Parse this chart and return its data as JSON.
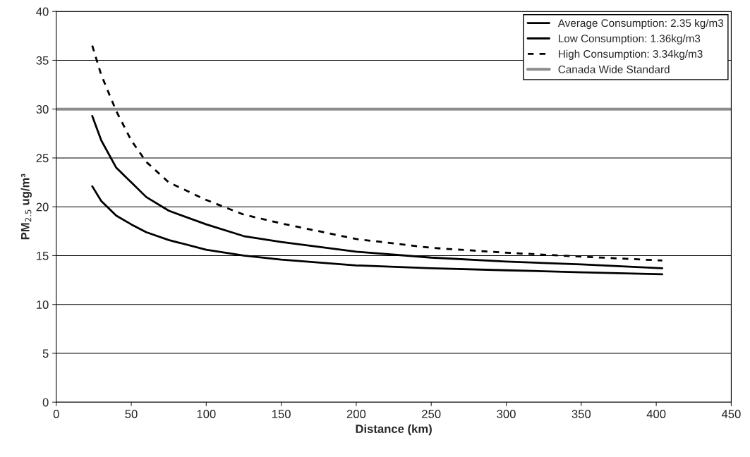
{
  "chart_data": {
    "type": "line",
    "xlabel": "Distance (km)",
    "ylabel": "PM$_{2.5}$ ug/m³",
    "x": [
      24,
      30,
      40,
      50,
      60,
      75,
      100,
      125,
      150,
      200,
      250,
      300,
      350,
      404
    ],
    "series": [
      {
        "name": "Average Consumption: 2.35 kg/m3",
        "color": "#000000",
        "line_style": "solid",
        "values": [
          29.3,
          26.8,
          24.0,
          22.5,
          21.0,
          19.6,
          18.2,
          17.0,
          16.4,
          15.4,
          14.8,
          14.4,
          14.1,
          13.7
        ]
      },
      {
        "name": "Low Consumption: 1.36kg/m3",
        "color": "#000000",
        "line_style": "solid",
        "values": [
          22.1,
          20.6,
          19.1,
          18.2,
          17.4,
          16.6,
          15.6,
          15.0,
          14.6,
          14.0,
          13.7,
          13.5,
          13.3,
          13.1
        ]
      },
      {
        "name": "High Consumption: 3.34kg/m3",
        "color": "#000000",
        "line_style": "dashed",
        "values": [
          36.5,
          33.5,
          29.8,
          26.8,
          24.6,
          22.5,
          20.7,
          19.2,
          18.3,
          16.7,
          15.8,
          15.3,
          14.9,
          14.5
        ]
      }
    ],
    "ref_lines": [
      {
        "axis": "y",
        "value": 30,
        "label": "Canada Wide Standard",
        "color": "#8c8c8c",
        "line_style": "solid"
      }
    ],
    "xlim": [
      0,
      450
    ],
    "xticks": [
      0,
      50,
      100,
      150,
      200,
      250,
      300,
      350,
      400,
      450
    ],
    "ylim": [
      0,
      40
    ],
    "yticks": [
      0,
      5,
      10,
      15,
      20,
      25,
      30,
      35,
      40
    ],
    "grid": "y",
    "legend": "top right",
    "marker": "none"
  }
}
